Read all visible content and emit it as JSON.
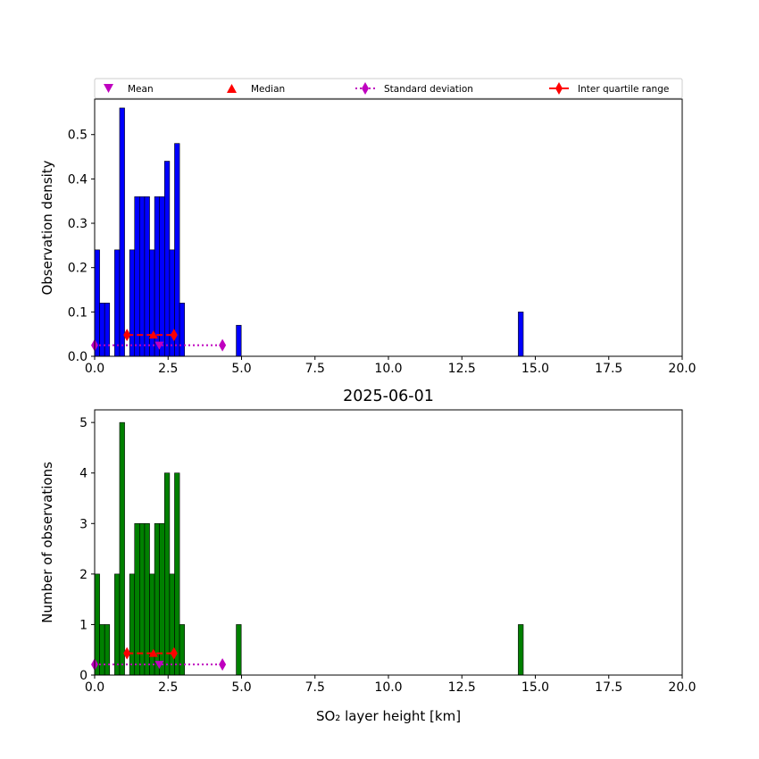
{
  "legend": {
    "entries": [
      {
        "label": "Mean",
        "color": "#bf00bf",
        "marker": "triangle-down"
      },
      {
        "label": "Median",
        "color": "#ff0000",
        "marker": "triangle-up"
      },
      {
        "label": "Standard deviation",
        "color": "#bf00bf",
        "marker": "thin-diamond"
      },
      {
        "label": "Inter quartile range",
        "color": "#ff0000",
        "marker": "thin-diamond"
      }
    ]
  },
  "chart_data": [
    {
      "type": "bar",
      "ylabel": "Observation density",
      "xlabel": "",
      "xlim": [
        0,
        20
      ],
      "ylim": [
        0,
        0.58
      ],
      "xticks": [
        "0.0",
        "2.5",
        "5.0",
        "7.5",
        "10.0",
        "12.5",
        "15.0",
        "17.5",
        "20.0"
      ],
      "yticks": [
        "0.0",
        "0.1",
        "0.2",
        "0.3",
        "0.4",
        "0.5"
      ],
      "bar_color": "#0000ff",
      "bin_width": 0.17,
      "bars": [
        {
          "x": 0.0,
          "v": 0.24
        },
        {
          "x": 0.17,
          "v": 0.12
        },
        {
          "x": 0.34,
          "v": 0.12
        },
        {
          "x": 0.68,
          "v": 0.24
        },
        {
          "x": 0.85,
          "v": 0.56
        },
        {
          "x": 1.19,
          "v": 0.24
        },
        {
          "x": 1.36,
          "v": 0.36
        },
        {
          "x": 1.53,
          "v": 0.36
        },
        {
          "x": 1.7,
          "v": 0.36
        },
        {
          "x": 1.87,
          "v": 0.24
        },
        {
          "x": 2.04,
          "v": 0.36
        },
        {
          "x": 2.21,
          "v": 0.36
        },
        {
          "x": 2.38,
          "v": 0.44
        },
        {
          "x": 2.55,
          "v": 0.24
        },
        {
          "x": 2.72,
          "v": 0.48
        },
        {
          "x": 2.89,
          "v": 0.12
        },
        {
          "x": 4.82,
          "v": 0.07
        },
        {
          "x": 14.42,
          "v": 0.1
        }
      ],
      "stats": {
        "mean": 2.2,
        "median": 2.0,
        "std": [
          0.0,
          4.35
        ],
        "iqr": [
          1.1,
          2.7
        ],
        "std_y": 0.025,
        "iqr_y": 0.048,
        "mean_y": 0.025,
        "median_y": 0.048
      }
    },
    {
      "type": "bar",
      "title": "2025-06-01",
      "ylabel": "Number of observations",
      "xlabel": "SO₂ layer height [km]",
      "xlim": [
        0,
        20
      ],
      "ylim": [
        0,
        5.25
      ],
      "xticks": [
        "0.0",
        "2.5",
        "5.0",
        "7.5",
        "10.0",
        "12.5",
        "15.0",
        "17.5",
        "20.0"
      ],
      "yticks": [
        "0",
        "1",
        "2",
        "3",
        "4",
        "5"
      ],
      "bar_color": "#008000",
      "bin_width": 0.17,
      "bars": [
        {
          "x": 0.0,
          "v": 2
        },
        {
          "x": 0.17,
          "v": 1
        },
        {
          "x": 0.34,
          "v": 1
        },
        {
          "x": 0.68,
          "v": 2
        },
        {
          "x": 0.85,
          "v": 5
        },
        {
          "x": 1.19,
          "v": 2
        },
        {
          "x": 1.36,
          "v": 3
        },
        {
          "x": 1.53,
          "v": 3
        },
        {
          "x": 1.7,
          "v": 3
        },
        {
          "x": 1.87,
          "v": 2
        },
        {
          "x": 2.04,
          "v": 3
        },
        {
          "x": 2.21,
          "v": 3
        },
        {
          "x": 2.38,
          "v": 4
        },
        {
          "x": 2.55,
          "v": 2
        },
        {
          "x": 2.72,
          "v": 4
        },
        {
          "x": 2.89,
          "v": 1
        },
        {
          "x": 4.82,
          "v": 1
        },
        {
          "x": 14.42,
          "v": 1
        }
      ],
      "stats": {
        "mean": 2.2,
        "median": 2.0,
        "std": [
          0.0,
          4.35
        ],
        "iqr": [
          1.1,
          2.7
        ],
        "std_y": 0.21,
        "iqr_y": 0.43,
        "mean_y": 0.21,
        "median_y": 0.43
      }
    }
  ]
}
